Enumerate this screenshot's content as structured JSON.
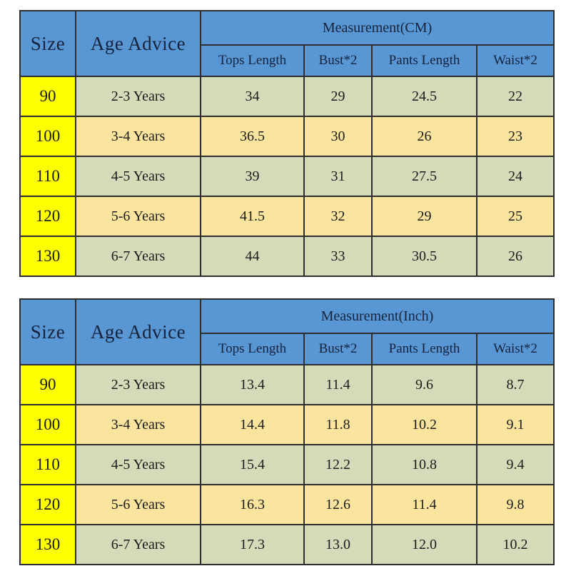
{
  "colors": {
    "header_blue": "#5897d4",
    "size_column_yellow": "#feff00",
    "row_green": "#d3dbb8",
    "row_tan": "#fbe49e",
    "border": "#2e2e2e",
    "header_text": "#17233d",
    "body_text": "#1c1c1c"
  },
  "chart_data": [
    {
      "type": "table",
      "title": "Measurement(CM)",
      "size_header": "Size",
      "age_header": "Age Advice",
      "columns": [
        "Tops Length",
        "Bust*2",
        "Pants Length",
        "Waist*2"
      ],
      "rows": [
        {
          "size": "90",
          "age": "2-3 Years",
          "values": [
            "34",
            "29",
            "24.5",
            "22"
          ]
        },
        {
          "size": "100",
          "age": "3-4 Years",
          "values": [
            "36.5",
            "30",
            "26",
            "23"
          ]
        },
        {
          "size": "110",
          "age": "4-5 Years",
          "values": [
            "39",
            "31",
            "27.5",
            "24"
          ]
        },
        {
          "size": "120",
          "age": "5-6 Years",
          "values": [
            "41.5",
            "32",
            "29",
            "25"
          ]
        },
        {
          "size": "130",
          "age": "6-7 Years",
          "values": [
            "44",
            "33",
            "30.5",
            "26"
          ]
        }
      ]
    },
    {
      "type": "table",
      "title": "Measurement(Inch)",
      "size_header": "Size",
      "age_header": "Age Advice",
      "columns": [
        "Tops Length",
        "Bust*2",
        "Pants Length",
        "Waist*2"
      ],
      "rows": [
        {
          "size": "90",
          "age": "2-3 Years",
          "values": [
            "13.4",
            "11.4",
            "9.6",
            "8.7"
          ]
        },
        {
          "size": "100",
          "age": "3-4 Years",
          "values": [
            "14.4",
            "11.8",
            "10.2",
            "9.1"
          ]
        },
        {
          "size": "110",
          "age": "4-5 Years",
          "values": [
            "15.4",
            "12.2",
            "10.8",
            "9.4"
          ]
        },
        {
          "size": "120",
          "age": "5-6 Years",
          "values": [
            "16.3",
            "12.6",
            "11.4",
            "9.8"
          ]
        },
        {
          "size": "130",
          "age": "6-7 Years",
          "values": [
            "17.3",
            "13.0",
            "12.0",
            "10.2"
          ]
        }
      ]
    }
  ]
}
